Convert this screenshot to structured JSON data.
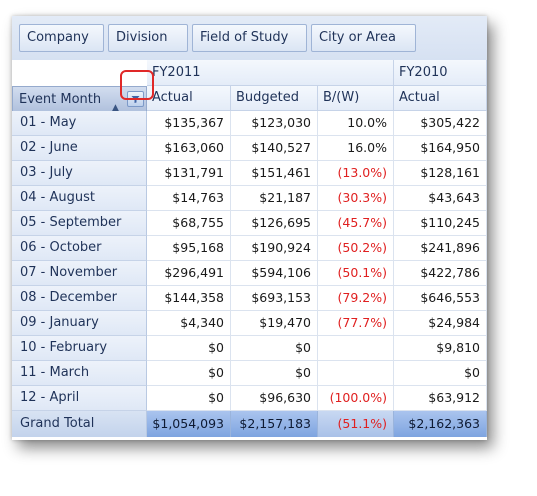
{
  "filter_fields": [
    "Company",
    "Division",
    "Field of Study",
    "City or Area"
  ],
  "row_field": {
    "label": "Event Month",
    "sort_icon": "sort-asc-icon",
    "filter_icon": "filter-funnel-icon"
  },
  "column_groups": [
    {
      "label": "FY2011",
      "measures": [
        "Actual",
        "Budgeted",
        "B/(W)"
      ]
    },
    {
      "label": "FY2010",
      "measures": [
        "Actual"
      ]
    }
  ],
  "rows": [
    {
      "label": "01 - May",
      "values": [
        "$135,367",
        "$123,030",
        "10.0%",
        "$305,422"
      ],
      "neg": [
        false,
        false,
        false,
        false
      ]
    },
    {
      "label": "02 - June",
      "values": [
        "$163,060",
        "$140,527",
        "16.0%",
        "$164,950"
      ],
      "neg": [
        false,
        false,
        false,
        false
      ]
    },
    {
      "label": "03 - July",
      "values": [
        "$131,791",
        "$151,461",
        "(13.0%)",
        "$128,161"
      ],
      "neg": [
        false,
        false,
        true,
        false
      ]
    },
    {
      "label": "04 - August",
      "values": [
        "$14,763",
        "$21,187",
        "(30.3%)",
        "$43,643"
      ],
      "neg": [
        false,
        false,
        true,
        false
      ]
    },
    {
      "label": "05 - September",
      "values": [
        "$68,755",
        "$126,695",
        "(45.7%)",
        "$110,245"
      ],
      "neg": [
        false,
        false,
        true,
        false
      ]
    },
    {
      "label": "06 - October",
      "values": [
        "$95,168",
        "$190,924",
        "(50.2%)",
        "$241,896"
      ],
      "neg": [
        false,
        false,
        true,
        false
      ]
    },
    {
      "label": "07 - November",
      "values": [
        "$296,491",
        "$594,106",
        "(50.1%)",
        "$422,786"
      ],
      "neg": [
        false,
        false,
        true,
        false
      ]
    },
    {
      "label": "08 - December",
      "values": [
        "$144,358",
        "$693,153",
        "(79.2%)",
        "$646,553"
      ],
      "neg": [
        false,
        false,
        true,
        false
      ]
    },
    {
      "label": "09 - January",
      "values": [
        "$4,340",
        "$19,470",
        "(77.7%)",
        "$24,984"
      ],
      "neg": [
        false,
        false,
        true,
        false
      ]
    },
    {
      "label": "10 - February",
      "values": [
        "$0",
        "$0",
        "",
        "$9,810"
      ],
      "neg": [
        false,
        false,
        false,
        false
      ]
    },
    {
      "label": "11 - March",
      "values": [
        "$0",
        "$0",
        "",
        "$0"
      ],
      "neg": [
        false,
        false,
        false,
        false
      ]
    },
    {
      "label": "12 - April",
      "values": [
        "$0",
        "$96,630",
        "(100.0%)",
        "$63,912"
      ],
      "neg": [
        false,
        false,
        true,
        false
      ]
    }
  ],
  "grand_total": {
    "label": "Grand Total",
    "values": [
      "$1,054,093",
      "$2,157,183",
      "(51.1%)",
      "$2,162,363"
    ],
    "neg": [
      false,
      false,
      true,
      false
    ]
  },
  "colors": {
    "negative": "#e02020",
    "highlight_box": "#e02828",
    "grand_total_fill": "#8eb0e6"
  }
}
